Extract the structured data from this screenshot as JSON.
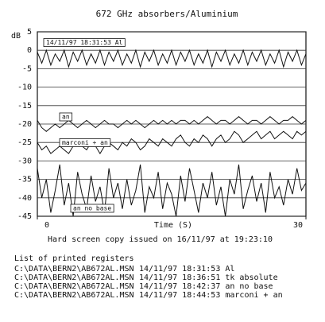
{
  "chart_data": {
    "type": "line",
    "title": "672 GHz absorbers/Aluminium",
    "ylabel": "dB",
    "xlabel": "Time (S)",
    "x": [
      0,
      0.5,
      1,
      1.5,
      2,
      2.5,
      3,
      3.5,
      4,
      4.5,
      5,
      5.5,
      6,
      6.5,
      7,
      7.5,
      8,
      8.5,
      9,
      9.5,
      10,
      10.5,
      11,
      11.5,
      12,
      12.5,
      13,
      13.5,
      14,
      14.5,
      15,
      15.5,
      16,
      16.5,
      17,
      17.5,
      18,
      18.5,
      19,
      19.5,
      20,
      20.5,
      21,
      21.5,
      22,
      22.5,
      23,
      23.5,
      24,
      24.5,
      25,
      25.5,
      26,
      26.5,
      27,
      27.5,
      28,
      28.5,
      29,
      29.5,
      30
    ],
    "series": [
      {
        "name": "14/11/97 18:31:53 Al",
        "color": "#111111",
        "values": [
          -0.5,
          -3.5,
          0,
          -4,
          -1,
          -3,
          0,
          -4.5,
          -0.5,
          -3,
          0,
          -4,
          -1,
          -3.5,
          0,
          -4,
          -0.5,
          -3,
          0,
          -4,
          -1,
          -3.5,
          0,
          -4.5,
          -0.5,
          -3,
          0,
          -4,
          -1,
          -3.5,
          0,
          -4,
          -0.5,
          -3,
          0,
          -4,
          -1,
          -3.5,
          0,
          -4.5,
          -0.5,
          -3,
          0,
          -4,
          -1,
          -3.5,
          0,
          -4,
          -0.5,
          -3,
          0,
          -4,
          -1,
          -3.5,
          0,
          -4.5,
          -0.5,
          -3,
          0,
          -4,
          -1
        ]
      },
      {
        "name": "an",
        "color": "#111111",
        "values": [
          -19,
          -21,
          -22,
          -21,
          -20,
          -21,
          -20,
          -19,
          -20,
          -21,
          -20,
          -19,
          -20,
          -21,
          -20,
          -19,
          -20,
          -20,
          -21,
          -20,
          -19,
          -20,
          -19,
          -20,
          -21,
          -20,
          -19,
          -20,
          -19,
          -20,
          -19,
          -20,
          -19,
          -19,
          -20,
          -19,
          -20,
          -19,
          -18,
          -19,
          -20,
          -19,
          -19,
          -20,
          -19,
          -18,
          -19,
          -20,
          -19,
          -19,
          -20,
          -19,
          -18,
          -19,
          -20,
          -19,
          -19,
          -18,
          -19,
          -20,
          -19
        ]
      },
      {
        "name": "marconi + an",
        "color": "#111111",
        "values": [
          -25,
          -27,
          -26,
          -28,
          -27,
          -26,
          -27,
          -28,
          -26,
          -25,
          -26,
          -27,
          -25,
          -26,
          -28,
          -26,
          -25,
          -26,
          -27,
          -25,
          -26,
          -24,
          -25,
          -27,
          -26,
          -24,
          -25,
          -26,
          -24,
          -25,
          -26,
          -24,
          -23,
          -25,
          -26,
          -24,
          -25,
          -23,
          -24,
          -26,
          -24,
          -23,
          -25,
          -24,
          -22,
          -23,
          -25,
          -24,
          -23,
          -22,
          -24,
          -23,
          -22,
          -24,
          -23,
          -22,
          -23,
          -24,
          -22,
          -23,
          -22
        ]
      },
      {
        "name": "an no base",
        "color": "#111111",
        "values": [
          -32,
          -40,
          -35,
          -44,
          -38,
          -31,
          -42,
          -36,
          -45,
          -33,
          -39,
          -43,
          -34,
          -41,
          -37,
          -44,
          -32,
          -40,
          -36,
          -43,
          -35,
          -42,
          -38,
          -31,
          -44,
          -37,
          -40,
          -33,
          -43,
          -36,
          -39,
          -45,
          -34,
          -41,
          -32,
          -38,
          -44,
          -36,
          -40,
          -33,
          -42,
          -37,
          -45,
          -35,
          -39,
          -31,
          -43,
          -38,
          -34,
          -41,
          -36,
          -44,
          -33,
          -40,
          -37,
          -42,
          -35,
          -39,
          -32,
          -38,
          -36
        ]
      }
    ],
    "xlim": [
      0,
      30
    ],
    "xticks": [
      0,
      30
    ],
    "ylim": [
      -45,
      5
    ],
    "yticks": [
      5,
      0,
      -5,
      -10,
      -15,
      -20,
      -25,
      -30,
      -35,
      -40,
      -45
    ],
    "grid": true
  },
  "footer": {
    "copy_note": "Hard screen copy issued on 16/11/97 at 19:23:10",
    "list_title": "List of printed registers",
    "registers": [
      [
        "C:\\DATA\\BERN2\\AB672AL.MSN",
        "14/11/97 18:31:53 Al"
      ],
      [
        "C:\\DATA\\BERN2\\AB672AL.MSN",
        "14/11/97 18:36:51 tk absolute"
      ],
      [
        "C:\\DATA\\BERN2\\AB672AL.MSN",
        "14/11/97 18:42:37 an no base"
      ],
      [
        "C:\\DATA\\BERN2\\AB672AL.MSN",
        "14/11/97 18:44:53 marconi + an"
      ]
    ]
  }
}
